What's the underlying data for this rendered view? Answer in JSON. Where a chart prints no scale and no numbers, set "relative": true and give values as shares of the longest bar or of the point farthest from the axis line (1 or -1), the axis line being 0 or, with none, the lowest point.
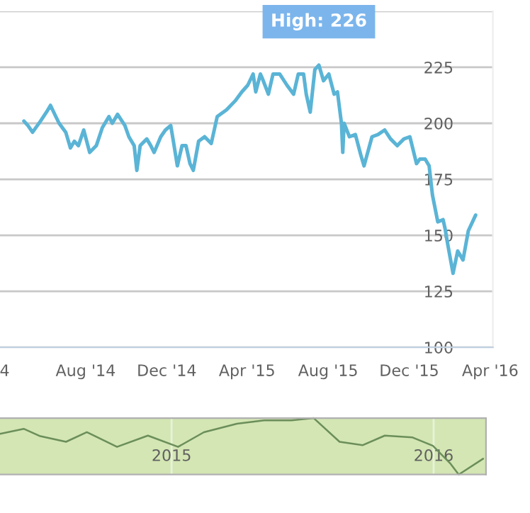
{
  "chart_data": [
    {
      "type": "line",
      "xlim": [
        "2014-03-25",
        "2016-04-05"
      ],
      "ylim": [
        100,
        250
      ],
      "xticks": [
        {
          "value": "2014-04-01",
          "label": "4"
        },
        {
          "value": "2014-08-01",
          "label": "Aug '14"
        },
        {
          "value": "2014-12-01",
          "label": "Dec '14"
        },
        {
          "value": "2015-04-01",
          "label": "Apr '15"
        },
        {
          "value": "2015-08-01",
          "label": "Aug '15"
        },
        {
          "value": "2015-12-01",
          "label": "Dec '15"
        },
        {
          "value": "2016-04-01",
          "label": "Apr '16"
        }
      ],
      "yticks": [
        100,
        125,
        150,
        175,
        200,
        225,
        {
          "value": 250,
          "label": null
        }
      ],
      "grid": "y",
      "legend": false,
      "marker": "none",
      "line_style": "solid",
      "annotations": [
        {
          "text": "High: 226",
          "x": "2015-07-18",
          "y": 226
        }
      ],
      "series": [
        {
          "color": "#5ab4d6",
          "x": [
            "2014-04-30",
            "2014-05-06",
            "2014-05-13",
            "2014-05-25",
            "2014-06-03",
            "2014-06-09",
            "2014-06-17",
            "2014-06-22",
            "2014-07-02",
            "2014-07-09",
            "2014-07-15",
            "2014-07-21",
            "2014-07-29",
            "2014-08-07",
            "2014-08-17",
            "2014-08-26",
            "2014-09-05",
            "2014-09-10",
            "2014-09-18",
            "2014-09-29",
            "2014-10-05",
            "2014-10-13",
            "2014-10-17",
            "2014-10-22",
            "2014-11-01",
            "2014-11-07",
            "2014-11-12",
            "2014-11-22",
            "2014-11-29",
            "2014-12-07",
            "2014-12-11",
            "2014-12-17",
            "2014-12-24",
            "2014-12-30",
            "2015-01-05",
            "2015-01-10",
            "2015-01-18",
            "2015-01-27",
            "2015-02-06",
            "2015-02-15",
            "2015-03-01",
            "2015-03-14",
            "2015-03-24",
            "2015-04-02",
            "2015-04-10",
            "2015-04-14",
            "2015-04-21",
            "2015-04-24",
            "2015-05-03",
            "2015-05-10",
            "2015-05-20",
            "2015-05-31",
            "2015-06-10",
            "2015-06-17",
            "2015-06-25",
            "2015-06-29",
            "2015-07-05",
            "2015-07-12",
            "2015-07-18",
            "2015-07-25",
            "2015-08-02",
            "2015-08-10",
            "2015-08-15",
            "2015-08-21",
            "2015-08-23",
            "2015-08-25",
            "2015-09-02",
            "2015-09-11",
            "2015-09-19",
            "2015-09-24",
            "2015-10-06",
            "2015-10-15",
            "2015-10-25",
            "2015-11-03",
            "2015-11-13",
            "2015-11-23",
            "2015-12-02",
            "2015-12-12",
            "2015-12-17",
            "2015-12-25",
            "2015-12-31",
            "2016-01-05",
            "2016-01-13",
            "2016-01-21",
            "2016-01-24",
            "2016-01-28",
            "2016-02-05",
            "2016-02-12",
            "2016-02-20",
            "2016-02-28",
            "2016-03-10"
          ],
          "values": [
            201,
            199,
            196,
            201,
            205,
            208,
            203,
            200,
            196,
            189,
            192,
            190,
            197,
            187,
            190,
            198,
            203,
            200,
            204,
            199,
            194,
            190,
            179,
            190,
            193,
            190,
            187,
            194,
            197,
            199,
            192,
            181,
            190,
            190,
            182,
            179,
            192,
            194,
            191,
            203,
            206,
            210,
            214,
            217,
            222,
            214,
            222,
            220,
            213,
            222,
            222,
            217,
            213,
            222,
            222,
            213,
            205,
            224,
            226,
            219,
            222,
            213,
            214,
            200,
            187,
            200,
            194,
            195,
            186,
            181,
            194,
            195,
            197,
            193,
            190,
            193,
            194,
            182,
            184,
            184,
            181,
            168,
            156,
            157,
            153,
            146,
            133,
            143,
            139,
            152,
            159
          ]
        }
      ]
    },
    {
      "type": "line",
      "relative": true,
      "xlim": [
        "2014-05-07",
        "2016-03-14"
      ],
      "xticks": [
        {
          "value": "2015-01-01",
          "label": "2015"
        },
        {
          "value": "2016-01-01",
          "label": "2016"
        }
      ],
      "tick_labels": "x",
      "grid": "x",
      "legend": false,
      "series": [
        {
          "color": "#6b8e5a",
          "x": [
            "2014-05-07",
            "2014-06-09",
            "2014-07-02",
            "2014-08-07",
            "2014-09-05",
            "2014-10-17",
            "2014-11-29",
            "2015-01-10",
            "2015-02-15",
            "2015-04-02",
            "2015-05-10",
            "2015-06-17",
            "2015-07-18",
            "2015-08-23",
            "2015-09-24",
            "2015-10-25",
            "2015-12-02",
            "2015-12-31",
            "2016-01-24",
            "2016-02-05",
            "2016-03-10"
          ],
          "values": [
            0.72,
            0.81,
            0.68,
            0.58,
            0.75,
            0.49,
            0.69,
            0.49,
            0.75,
            0.9,
            0.96,
            0.96,
            1,
            0.58,
            0.52,
            0.69,
            0.66,
            0.51,
            0.2,
            0,
            0.28
          ]
        }
      ]
    }
  ]
}
